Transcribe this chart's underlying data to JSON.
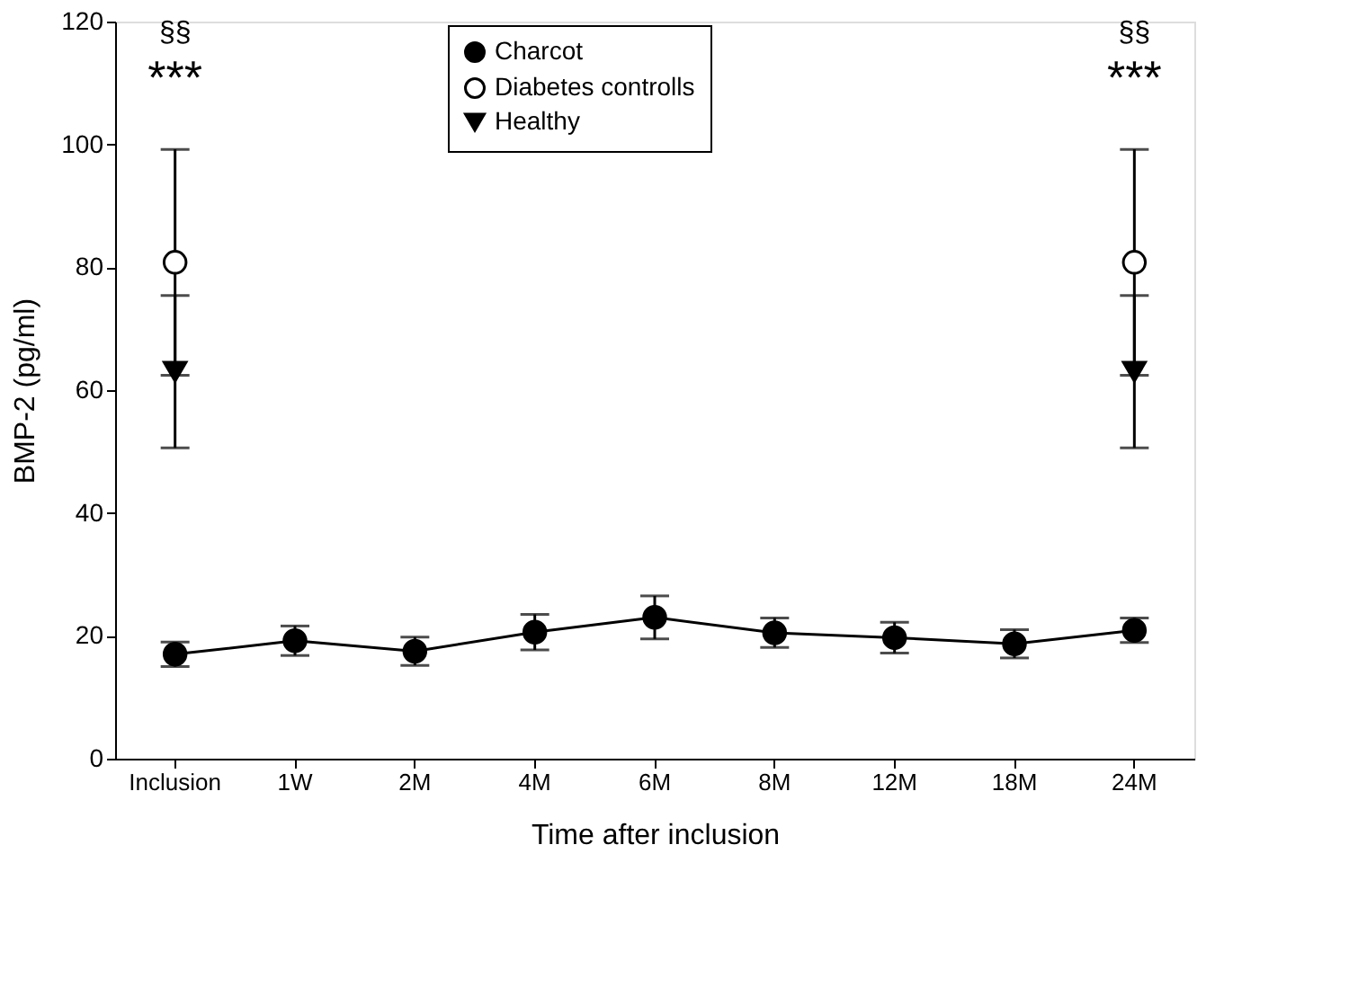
{
  "chart_data": {
    "type": "line",
    "xlabel": "Time after inclusion",
    "ylabel": "BMP-2 (pg/ml)",
    "categories": [
      "Inclusion",
      "1W",
      "2M",
      "4M",
      "6M",
      "8M",
      "12M",
      "18M",
      "24M"
    ],
    "ylim": [
      0,
      120
    ],
    "yticks": [
      0,
      20,
      40,
      60,
      80,
      100,
      120
    ],
    "grid": false,
    "legend": "top",
    "series": [
      {
        "name": "Charcot",
        "color": "#000000",
        "marker": "circle",
        "values": [
          17,
          19.2,
          17.5,
          20.6,
          23,
          20.5,
          19.7,
          18.7,
          20.9
        ],
        "errors": [
          2,
          2.4,
          2.3,
          2.9,
          3.5,
          2.4,
          2.5,
          2.3,
          2
        ]
      },
      {
        "name": "Diabetes controlls",
        "color": "#ffffff",
        "type": "scatter",
        "marker": "circle",
        "values": [
          80.8,
          null,
          null,
          null,
          null,
          null,
          null,
          null,
          80.8
        ],
        "errors": [
          18.4,
          null,
          null,
          null,
          null,
          null,
          null,
          null,
          18.4
        ]
      },
      {
        "name": "Healthy",
        "color": "#000000",
        "type": "scatter",
        "marker": "triangle-down",
        "values": [
          63,
          null,
          null,
          null,
          null,
          null,
          null,
          null,
          63
        ],
        "errors": [
          12.4,
          null,
          null,
          null,
          null,
          null,
          null,
          null,
          12.4
        ]
      }
    ],
    "line_style": "solid",
    "annotations": [
      "§§",
      "***",
      "§§",
      "***"
    ]
  }
}
